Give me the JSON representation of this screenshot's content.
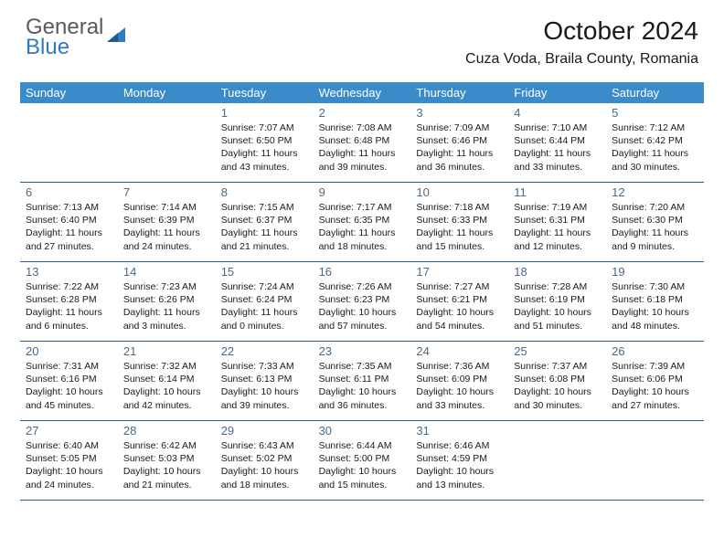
{
  "logo": {
    "line1": "General",
    "line2": "Blue"
  },
  "title": "October 2024",
  "location": "Cuza Voda, Braila County, Romania",
  "colors": {
    "header_bg": "#3b8bc9",
    "header_text": "#ffffff",
    "daynum_color": "#4a6a88",
    "rule_color": "#2a5a8a",
    "logo_gray": "#5a5a5a",
    "logo_blue": "#2f7ac0",
    "body_text": "#1a1a1a",
    "page_bg": "#ffffff"
  },
  "typography": {
    "title_fontsize": 28,
    "location_fontsize": 16,
    "weekday_fontsize": 13,
    "daynum_fontsize": 13,
    "info_fontsize": 10.5,
    "logo_fontsize": 24
  },
  "weekdays": [
    "Sunday",
    "Monday",
    "Tuesday",
    "Wednesday",
    "Thursday",
    "Friday",
    "Saturday"
  ],
  "weeks": [
    [
      {
        "n": "",
        "sr": "",
        "ss": "",
        "dl": ""
      },
      {
        "n": "",
        "sr": "",
        "ss": "",
        "dl": ""
      },
      {
        "n": "1",
        "sr": "Sunrise: 7:07 AM",
        "ss": "Sunset: 6:50 PM",
        "dl": "Daylight: 11 hours and 43 minutes."
      },
      {
        "n": "2",
        "sr": "Sunrise: 7:08 AM",
        "ss": "Sunset: 6:48 PM",
        "dl": "Daylight: 11 hours and 39 minutes."
      },
      {
        "n": "3",
        "sr": "Sunrise: 7:09 AM",
        "ss": "Sunset: 6:46 PM",
        "dl": "Daylight: 11 hours and 36 minutes."
      },
      {
        "n": "4",
        "sr": "Sunrise: 7:10 AM",
        "ss": "Sunset: 6:44 PM",
        "dl": "Daylight: 11 hours and 33 minutes."
      },
      {
        "n": "5",
        "sr": "Sunrise: 7:12 AM",
        "ss": "Sunset: 6:42 PM",
        "dl": "Daylight: 11 hours and 30 minutes."
      }
    ],
    [
      {
        "n": "6",
        "sr": "Sunrise: 7:13 AM",
        "ss": "Sunset: 6:40 PM",
        "dl": "Daylight: 11 hours and 27 minutes."
      },
      {
        "n": "7",
        "sr": "Sunrise: 7:14 AM",
        "ss": "Sunset: 6:39 PM",
        "dl": "Daylight: 11 hours and 24 minutes."
      },
      {
        "n": "8",
        "sr": "Sunrise: 7:15 AM",
        "ss": "Sunset: 6:37 PM",
        "dl": "Daylight: 11 hours and 21 minutes."
      },
      {
        "n": "9",
        "sr": "Sunrise: 7:17 AM",
        "ss": "Sunset: 6:35 PM",
        "dl": "Daylight: 11 hours and 18 minutes."
      },
      {
        "n": "10",
        "sr": "Sunrise: 7:18 AM",
        "ss": "Sunset: 6:33 PM",
        "dl": "Daylight: 11 hours and 15 minutes."
      },
      {
        "n": "11",
        "sr": "Sunrise: 7:19 AM",
        "ss": "Sunset: 6:31 PM",
        "dl": "Daylight: 11 hours and 12 minutes."
      },
      {
        "n": "12",
        "sr": "Sunrise: 7:20 AM",
        "ss": "Sunset: 6:30 PM",
        "dl": "Daylight: 11 hours and 9 minutes."
      }
    ],
    [
      {
        "n": "13",
        "sr": "Sunrise: 7:22 AM",
        "ss": "Sunset: 6:28 PM",
        "dl": "Daylight: 11 hours and 6 minutes."
      },
      {
        "n": "14",
        "sr": "Sunrise: 7:23 AM",
        "ss": "Sunset: 6:26 PM",
        "dl": "Daylight: 11 hours and 3 minutes."
      },
      {
        "n": "15",
        "sr": "Sunrise: 7:24 AM",
        "ss": "Sunset: 6:24 PM",
        "dl": "Daylight: 11 hours and 0 minutes."
      },
      {
        "n": "16",
        "sr": "Sunrise: 7:26 AM",
        "ss": "Sunset: 6:23 PM",
        "dl": "Daylight: 10 hours and 57 minutes."
      },
      {
        "n": "17",
        "sr": "Sunrise: 7:27 AM",
        "ss": "Sunset: 6:21 PM",
        "dl": "Daylight: 10 hours and 54 minutes."
      },
      {
        "n": "18",
        "sr": "Sunrise: 7:28 AM",
        "ss": "Sunset: 6:19 PM",
        "dl": "Daylight: 10 hours and 51 minutes."
      },
      {
        "n": "19",
        "sr": "Sunrise: 7:30 AM",
        "ss": "Sunset: 6:18 PM",
        "dl": "Daylight: 10 hours and 48 minutes."
      }
    ],
    [
      {
        "n": "20",
        "sr": "Sunrise: 7:31 AM",
        "ss": "Sunset: 6:16 PM",
        "dl": "Daylight: 10 hours and 45 minutes."
      },
      {
        "n": "21",
        "sr": "Sunrise: 7:32 AM",
        "ss": "Sunset: 6:14 PM",
        "dl": "Daylight: 10 hours and 42 minutes."
      },
      {
        "n": "22",
        "sr": "Sunrise: 7:33 AM",
        "ss": "Sunset: 6:13 PM",
        "dl": "Daylight: 10 hours and 39 minutes."
      },
      {
        "n": "23",
        "sr": "Sunrise: 7:35 AM",
        "ss": "Sunset: 6:11 PM",
        "dl": "Daylight: 10 hours and 36 minutes."
      },
      {
        "n": "24",
        "sr": "Sunrise: 7:36 AM",
        "ss": "Sunset: 6:09 PM",
        "dl": "Daylight: 10 hours and 33 minutes."
      },
      {
        "n": "25",
        "sr": "Sunrise: 7:37 AM",
        "ss": "Sunset: 6:08 PM",
        "dl": "Daylight: 10 hours and 30 minutes."
      },
      {
        "n": "26",
        "sr": "Sunrise: 7:39 AM",
        "ss": "Sunset: 6:06 PM",
        "dl": "Daylight: 10 hours and 27 minutes."
      }
    ],
    [
      {
        "n": "27",
        "sr": "Sunrise: 6:40 AM",
        "ss": "Sunset: 5:05 PM",
        "dl": "Daylight: 10 hours and 24 minutes."
      },
      {
        "n": "28",
        "sr": "Sunrise: 6:42 AM",
        "ss": "Sunset: 5:03 PM",
        "dl": "Daylight: 10 hours and 21 minutes."
      },
      {
        "n": "29",
        "sr": "Sunrise: 6:43 AM",
        "ss": "Sunset: 5:02 PM",
        "dl": "Daylight: 10 hours and 18 minutes."
      },
      {
        "n": "30",
        "sr": "Sunrise: 6:44 AM",
        "ss": "Sunset: 5:00 PM",
        "dl": "Daylight: 10 hours and 15 minutes."
      },
      {
        "n": "31",
        "sr": "Sunrise: 6:46 AM",
        "ss": "Sunset: 4:59 PM",
        "dl": "Daylight: 10 hours and 13 minutes."
      },
      {
        "n": "",
        "sr": "",
        "ss": "",
        "dl": ""
      },
      {
        "n": "",
        "sr": "",
        "ss": "",
        "dl": ""
      }
    ]
  ]
}
